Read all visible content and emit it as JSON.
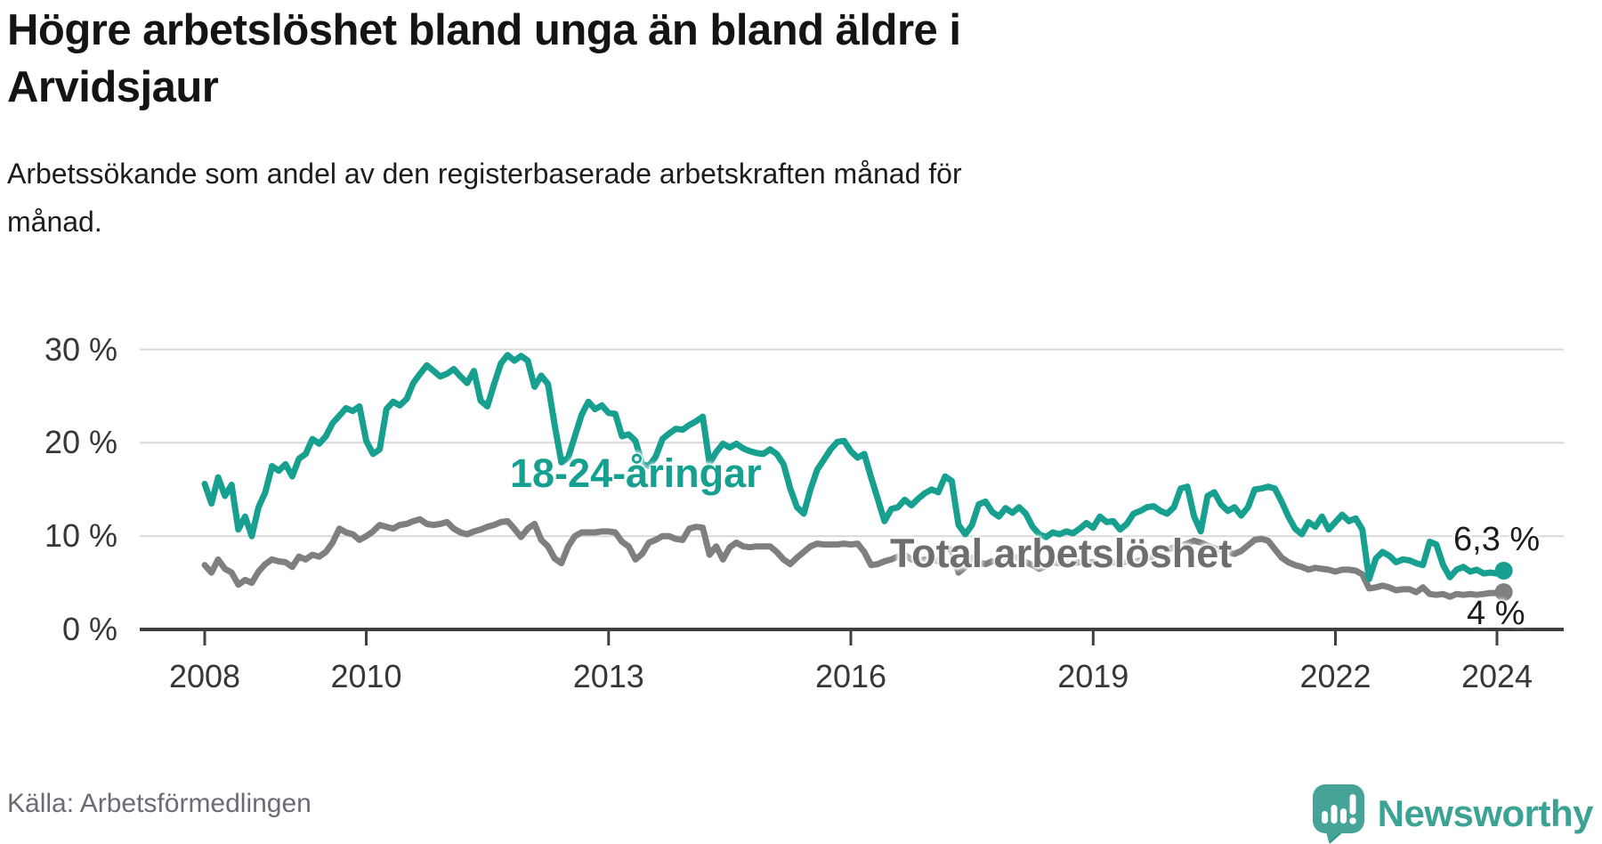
{
  "header": {
    "title": "Högre arbetslöshet bland unga än bland äldre i Arvidsjaur",
    "title_lines": [
      "Högre arbetslöshet bland unga än bland äldre i",
      "Arvidsjaur"
    ],
    "subtitle_lines": [
      "Arbetssökande som andel av den registerbaserade arbetskraften månad för",
      "månad."
    ]
  },
  "footer": {
    "source": "Källa: Arbetsförmedlingen",
    "brand_name": "Newsworthy",
    "brand_icon": "speech-bubble-bar-chart-icon"
  },
  "colors": {
    "youth": "#17a08f",
    "total": "#7f7f7f",
    "grid": "#d9d9d9",
    "axis": "#3f3f3f",
    "tick_label": "#373737",
    "title_text": "#141414",
    "source_text": "#6b6b76",
    "brand": "#3ca294",
    "brand_bubble": "#46a398"
  },
  "chart_data": {
    "type": "line",
    "x_unit": "month",
    "x_start_year": 2008,
    "x_end_label_year": 2024.08,
    "x_tick_years": [
      2008,
      2010,
      2013,
      2016,
      2019,
      2022,
      2024
    ],
    "y_ticks_percent": [
      0,
      10,
      20,
      30
    ],
    "y_tick_suffix": " %",
    "ylim": [
      0,
      31.5
    ],
    "grid": true,
    "legend_position": "inline-labels",
    "series": [
      {
        "name": "Total arbetslöshet",
        "color_key": "total",
        "end_label": "4 %",
        "end_value": 4.0,
        "values": [
          6.9,
          6.1,
          7.5,
          6.5,
          6.1,
          4.8,
          5.3,
          5.0,
          6.2,
          7.0,
          7.5,
          7.3,
          7.2,
          6.7,
          7.8,
          7.5,
          8.0,
          7.8,
          8.3,
          9.3,
          10.8,
          10.4,
          10.2,
          9.6,
          10.0,
          10.5,
          11.2,
          11.0,
          10.8,
          11.2,
          11.3,
          11.6,
          11.8,
          11.3,
          11.2,
          11.3,
          11.5,
          10.8,
          10.4,
          10.2,
          10.5,
          10.7,
          11.0,
          11.2,
          11.5,
          11.6,
          10.8,
          9.9,
          10.8,
          11.3,
          9.6,
          8.9,
          7.6,
          7.1,
          8.9,
          10.0,
          10.4,
          10.4,
          10.4,
          10.5,
          10.5,
          10.4,
          9.4,
          8.9,
          7.5,
          8.1,
          9.3,
          9.6,
          10.0,
          10.0,
          9.7,
          9.6,
          10.8,
          11.0,
          10.9,
          8.0,
          8.9,
          7.5,
          8.8,
          9.3,
          8.9,
          8.8,
          8.9,
          8.9,
          8.9,
          8.3,
          7.5,
          7.0,
          7.7,
          8.3,
          8.9,
          9.2,
          9.1,
          9.1,
          9.1,
          9.2,
          9.1,
          9.2,
          8.3,
          6.9,
          7.0,
          7.3,
          7.5,
          7.8,
          8.0,
          7.5,
          7.3,
          7.5,
          7.5,
          7.3,
          8.8,
          8.5,
          6.1,
          6.7,
          7.7,
          7.2,
          7.0,
          7.3,
          7.2,
          7.3,
          7.8,
          7.6,
          7.2,
          6.9,
          6.5,
          6.8,
          7.2,
          7.1,
          7.0,
          7.1,
          7.2,
          7.2,
          7.2,
          6.9,
          7.0,
          7.2,
          7.1,
          7.3,
          7.2,
          7.4,
          7.6,
          7.8,
          8.2,
          8.5,
          8.8,
          9.0,
          9.2,
          9.5,
          9.3,
          9.0,
          8.7,
          8.5,
          8.3,
          8.1,
          8.4,
          9.0,
          9.6,
          9.7,
          9.5,
          8.6,
          7.7,
          7.2,
          6.9,
          6.7,
          6.4,
          6.6,
          6.5,
          6.4,
          6.2,
          6.4,
          6.4,
          6.3,
          5.9,
          4.4,
          4.5,
          4.7,
          4.5,
          4.2,
          4.3,
          4.3,
          4.0,
          4.5,
          3.8,
          3.7,
          3.8,
          3.5,
          3.8,
          3.7,
          3.8,
          3.7,
          3.8,
          3.9,
          3.9,
          4.0
        ]
      },
      {
        "name": "18-24-åringar",
        "color_key": "youth",
        "end_label": "6,3 %",
        "end_value": 6.3,
        "values": [
          15.6,
          13.5,
          16.3,
          14.3,
          15.5,
          10.7,
          12.1,
          10.0,
          13.1,
          14.7,
          17.5,
          17.0,
          17.7,
          16.4,
          18.3,
          18.8,
          20.4,
          19.9,
          20.7,
          22.1,
          22.9,
          23.7,
          23.4,
          23.9,
          20.2,
          18.8,
          19.3,
          23.6,
          24.4,
          24.0,
          24.7,
          26.4,
          27.4,
          28.3,
          27.7,
          27.1,
          27.4,
          27.9,
          27.1,
          26.4,
          27.7,
          24.5,
          23.9,
          26.3,
          28.5,
          29.4,
          28.8,
          29.3,
          28.8,
          26.0,
          27.2,
          26.3,
          21.9,
          17.9,
          18.4,
          20.7,
          23.0,
          24.4,
          23.6,
          24.0,
          23.2,
          23.1,
          20.7,
          20.9,
          20.2,
          17.7,
          17.5,
          18.5,
          20.4,
          21.0,
          21.5,
          21.4,
          21.9,
          22.3,
          22.8,
          17.8,
          19.0,
          19.9,
          19.5,
          19.9,
          19.4,
          19.1,
          18.9,
          18.8,
          19.3,
          18.8,
          17.7,
          15.1,
          13.1,
          12.4,
          15.0,
          17.1,
          18.2,
          19.3,
          20.1,
          20.2,
          19.1,
          18.4,
          18.8,
          16.3,
          14.0,
          11.6,
          12.9,
          13.1,
          13.9,
          13.3,
          14.0,
          14.6,
          15.0,
          14.7,
          16.4,
          15.9,
          11.2,
          10.2,
          11.2,
          13.4,
          13.7,
          12.6,
          12.1,
          13.0,
          12.5,
          13.1,
          12.4,
          11.0,
          10.2,
          9.9,
          10.4,
          10.2,
          10.5,
          10.3,
          10.8,
          11.4,
          10.9,
          12.1,
          11.5,
          11.6,
          10.7,
          11.3,
          12.4,
          12.7,
          13.1,
          13.2,
          12.7,
          12.4,
          13.1,
          15.1,
          15.3,
          12.1,
          10.5,
          14.3,
          14.7,
          13.4,
          12.7,
          13.1,
          12.2,
          13.1,
          15.0,
          15.1,
          15.3,
          15.1,
          13.7,
          12.1,
          10.8,
          10.2,
          11.5,
          11.0,
          12.1,
          10.7,
          11.5,
          12.3,
          11.6,
          11.9,
          10.7,
          5.4,
          7.6,
          8.3,
          7.9,
          7.2,
          7.5,
          7.4,
          7.1,
          6.9,
          9.4,
          9.1,
          6.9,
          5.6,
          6.4,
          6.7,
          6.2,
          6.4,
          6.0,
          6.1,
          6.0,
          6.3
        ]
      }
    ],
    "annotations": {
      "youth_series_label": "18-24-åringar",
      "total_series_label": "Total arbetslöshet",
      "youth_end_label": "6,3 %",
      "total_end_label": "4 %"
    }
  }
}
